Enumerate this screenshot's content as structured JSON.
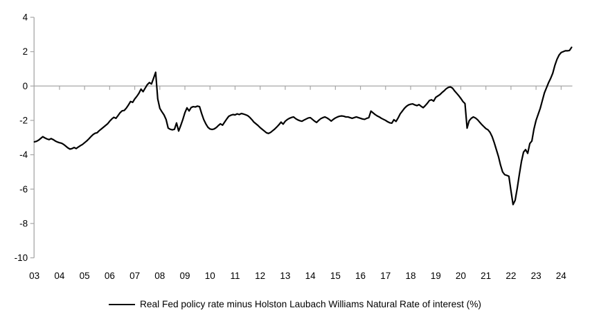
{
  "chart_data": {
    "type": "line",
    "title": "",
    "legend": "Real Fed policy rate minus Holston Laubach Williams Natural Rate of interest (%)",
    "legend_position": "bottom-center",
    "grid": "zero-line-only",
    "xlabel": "",
    "ylabel": "",
    "ylim": [
      -10,
      4
    ],
    "y_ticks": [
      4,
      2,
      0,
      -2,
      -4,
      -6,
      -8,
      -10
    ],
    "y_tick_labels": [
      "4",
      "2",
      "0",
      "-2",
      "-4",
      "-6",
      "-8",
      "-10"
    ],
    "x_tick_labels": [
      "03",
      "04",
      "05",
      "06",
      "07",
      "08",
      "09",
      "10",
      "11",
      "12",
      "13",
      "14",
      "15",
      "16",
      "17",
      "18",
      "19",
      "20",
      "21",
      "22",
      "23",
      "24"
    ],
    "colors": {
      "line": "#000000",
      "axis": "#a6a6a6",
      "text": "#000000"
    },
    "series": [
      {
        "name": "Real Fed policy rate minus Holston Laubach Williams Natural Rate of interest (%)",
        "start_year": 2003,
        "frequency": "monthly",
        "values": [
          -3.25,
          -3.22,
          -3.15,
          -3.05,
          -2.95,
          -3.02,
          -3.08,
          -3.12,
          -3.06,
          -3.12,
          -3.2,
          -3.26,
          -3.3,
          -3.33,
          -3.4,
          -3.5,
          -3.6,
          -3.67,
          -3.64,
          -3.58,
          -3.64,
          -3.55,
          -3.47,
          -3.4,
          -3.3,
          -3.2,
          -3.08,
          -2.95,
          -2.83,
          -2.75,
          -2.72,
          -2.6,
          -2.5,
          -2.4,
          -2.3,
          -2.2,
          -2.05,
          -1.92,
          -1.82,
          -1.88,
          -1.72,
          -1.55,
          -1.44,
          -1.42,
          -1.28,
          -1.1,
          -0.9,
          -0.95,
          -0.75,
          -0.6,
          -0.42,
          -0.18,
          -0.33,
          -0.12,
          0.08,
          0.2,
          0.12,
          0.45,
          0.8,
          -0.75,
          -1.3,
          -1.5,
          -1.68,
          -1.95,
          -2.45,
          -2.52,
          -2.55,
          -2.52,
          -2.15,
          -2.62,
          -2.3,
          -1.95,
          -1.55,
          -1.27,
          -1.45,
          -1.25,
          -1.2,
          -1.22,
          -1.17,
          -1.2,
          -1.6,
          -1.95,
          -2.2,
          -2.4,
          -2.5,
          -2.53,
          -2.5,
          -2.42,
          -2.3,
          -2.2,
          -2.28,
          -2.1,
          -1.92,
          -1.76,
          -1.7,
          -1.66,
          -1.68,
          -1.62,
          -1.66,
          -1.6,
          -1.63,
          -1.67,
          -1.72,
          -1.82,
          -1.95,
          -2.1,
          -2.2,
          -2.3,
          -2.42,
          -2.52,
          -2.62,
          -2.72,
          -2.76,
          -2.7,
          -2.6,
          -2.5,
          -2.38,
          -2.25,
          -2.1,
          -2.22,
          -2.05,
          -1.95,
          -1.88,
          -1.83,
          -1.8,
          -1.9,
          -1.97,
          -2.02,
          -2.05,
          -1.98,
          -1.92,
          -1.86,
          -1.84,
          -1.94,
          -2.04,
          -2.12,
          -2.0,
          -1.9,
          -1.84,
          -1.8,
          -1.86,
          -1.94,
          -2.04,
          -1.94,
          -1.86,
          -1.8,
          -1.76,
          -1.74,
          -1.76,
          -1.8,
          -1.8,
          -1.84,
          -1.88,
          -1.84,
          -1.8,
          -1.84,
          -1.88,
          -1.92,
          -1.94,
          -1.88,
          -1.84,
          -1.46,
          -1.56,
          -1.66,
          -1.74,
          -1.8,
          -1.88,
          -1.94,
          -2.0,
          -2.08,
          -2.14,
          -2.16,
          -1.96,
          -2.06,
          -1.86,
          -1.62,
          -1.46,
          -1.3,
          -1.18,
          -1.1,
          -1.06,
          -1.04,
          -1.1,
          -1.14,
          -1.08,
          -1.18,
          -1.26,
          -1.14,
          -1.0,
          -0.84,
          -0.8,
          -0.88,
          -0.66,
          -0.58,
          -0.5,
          -0.38,
          -0.28,
          -0.16,
          -0.08,
          -0.05,
          -0.12,
          -0.28,
          -0.42,
          -0.56,
          -0.72,
          -0.9,
          -1.02,
          -2.45,
          -2.02,
          -1.88,
          -1.8,
          -1.86,
          -1.96,
          -2.1,
          -2.24,
          -2.36,
          -2.48,
          -2.55,
          -2.7,
          -2.95,
          -3.3,
          -3.7,
          -4.1,
          -4.6,
          -5.0,
          -5.16,
          -5.2,
          -5.25,
          -6.1,
          -6.9,
          -6.65,
          -5.95,
          -5.15,
          -4.4,
          -3.85,
          -3.7,
          -3.92,
          -3.35,
          -3.2,
          -2.5,
          -2.0,
          -1.65,
          -1.3,
          -0.85,
          -0.4,
          -0.1,
          0.2,
          0.45,
          0.75,
          1.2,
          1.55,
          1.8,
          1.95,
          2.0,
          2.05,
          2.05,
          2.07,
          2.25
        ]
      }
    ]
  }
}
